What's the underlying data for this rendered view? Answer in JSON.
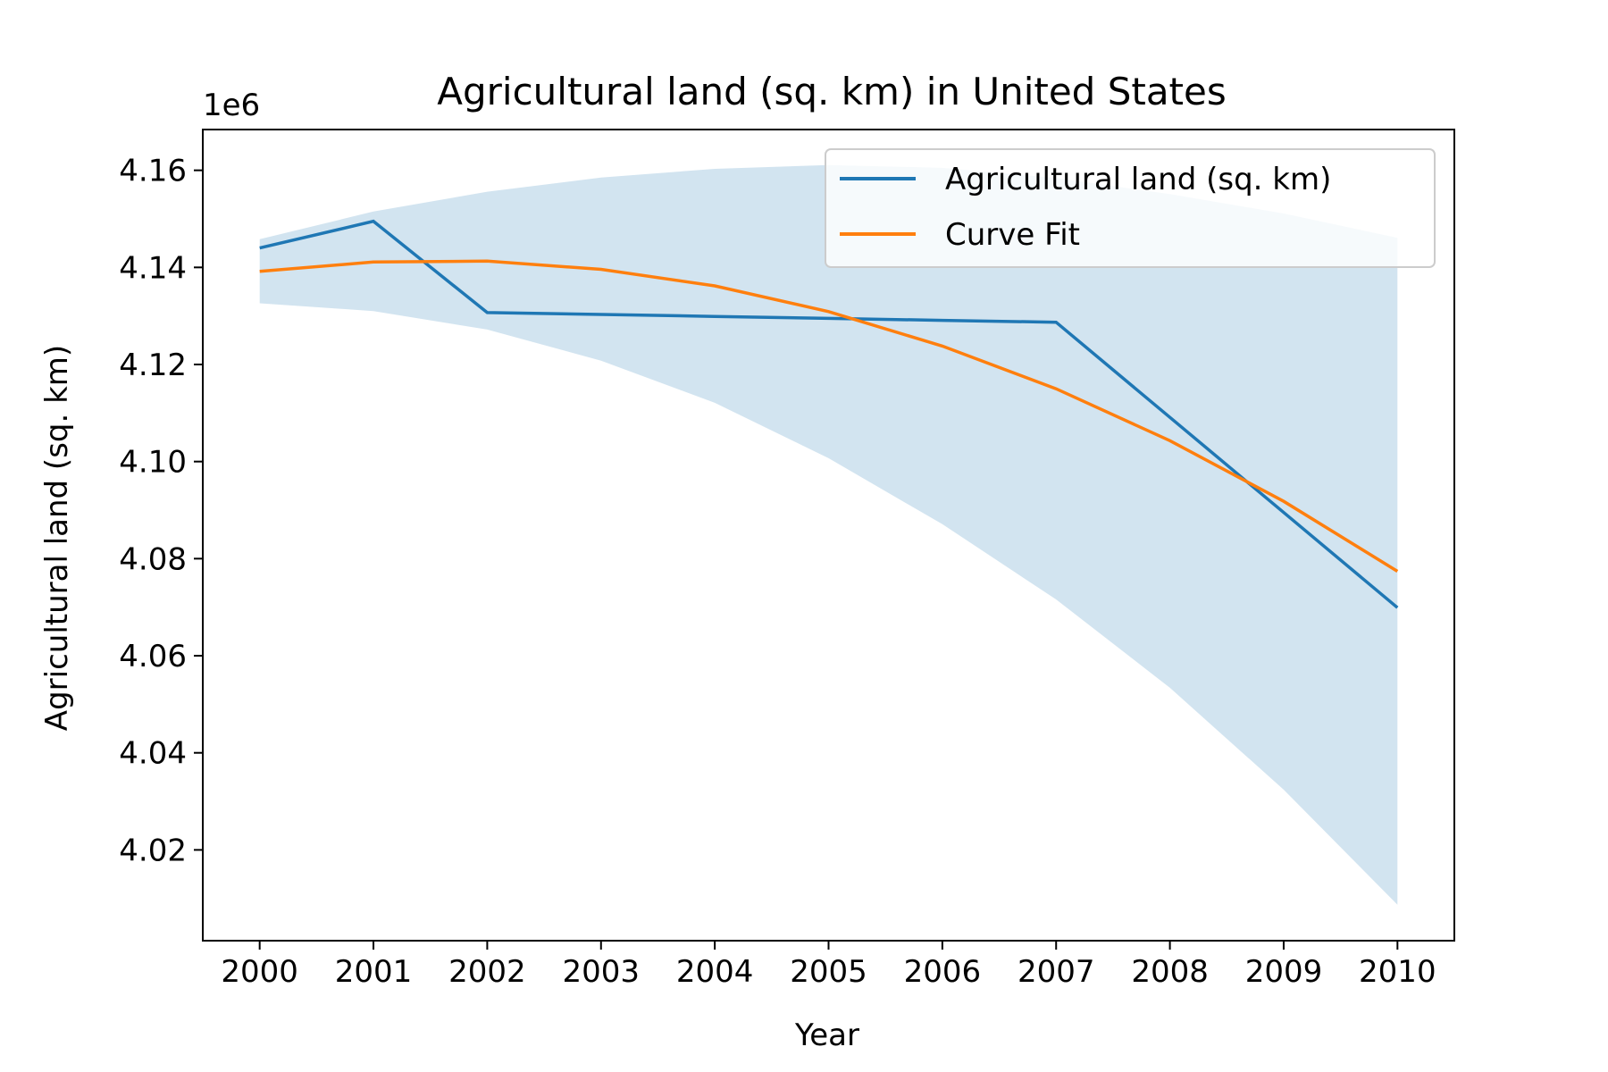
{
  "chart_data": {
    "type": "line",
    "title": "Agricultural land (sq. km) in United States",
    "xlabel": "Year",
    "ylabel": "Agricultural land (sq. km)",
    "y_offset_label": "1e6",
    "x": [
      2000,
      2001,
      2002,
      2003,
      2004,
      2005,
      2006,
      2007,
      2008,
      2009,
      2010
    ],
    "xlim": [
      1999.5,
      2010.5
    ],
    "ylim": [
      4.0013,
      4.1684
    ],
    "y_ticks": [
      4.02,
      4.04,
      4.06,
      4.08,
      4.1,
      4.12,
      4.14,
      4.16
    ],
    "y_tick_labels": [
      "4.02",
      "4.04",
      "4.06",
      "4.08",
      "4.10",
      "4.12",
      "4.14",
      "4.16"
    ],
    "x_tick_labels": [
      "2000",
      "2001",
      "2002",
      "2003",
      "2004",
      "2005",
      "2006",
      "2007",
      "2008",
      "2009",
      "2010"
    ],
    "grid": false,
    "legend_position": "upper-right",
    "series": [
      {
        "name": "Agricultural land (sq. km)",
        "color": "#1f77b4",
        "values": [
          4.144,
          4.1495,
          4.1307,
          4.1303,
          4.1299,
          4.1295,
          4.1291,
          4.1287,
          4.1091,
          4.0895,
          4.0699
        ]
      },
      {
        "name": "Curve Fit",
        "color": "#ff7f0e",
        "values": [
          4.1392,
          4.1411,
          4.1413,
          4.1396,
          4.1362,
          4.1309,
          4.1238,
          4.115,
          4.1043,
          4.0918,
          4.0774
        ]
      }
    ],
    "confidence_band": {
      "color": "#1f77b4",
      "opacity": 0.2,
      "upper": [
        4.1458,
        4.1515,
        4.1556,
        4.1585,
        4.1603,
        4.1611,
        4.1605,
        4.1584,
        4.1551,
        4.1511,
        4.1461
      ],
      "lower": [
        4.1326,
        4.131,
        4.1272,
        4.1208,
        4.1121,
        4.1007,
        4.0871,
        4.0716,
        4.0534,
        4.0324,
        4.0087
      ]
    }
  }
}
